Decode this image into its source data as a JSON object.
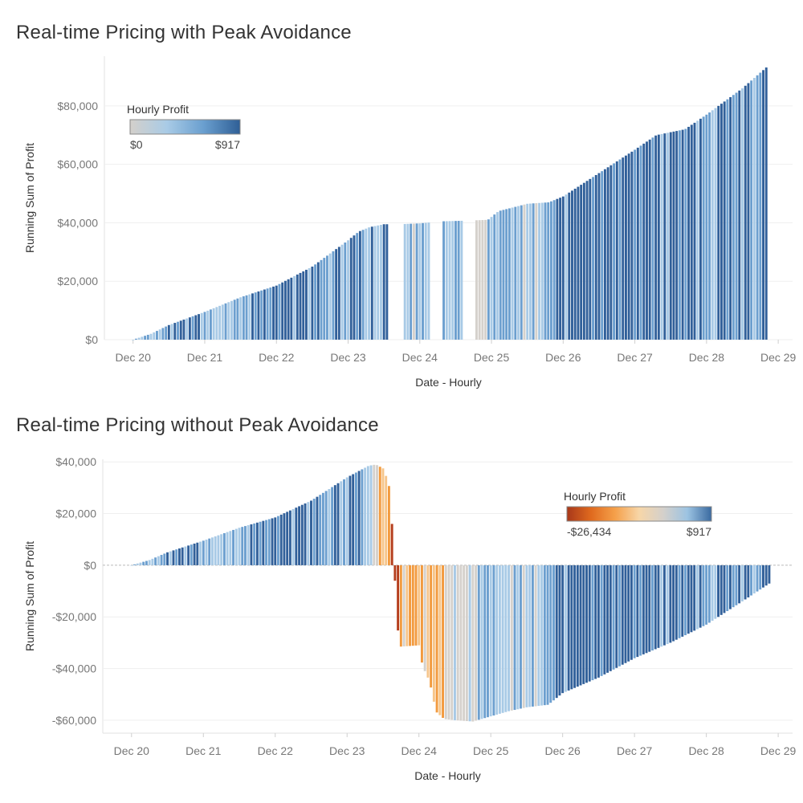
{
  "chart_data": [
    {
      "type": "bar",
      "title": "Real-time Pricing with Peak Avoidance",
      "xlabel": "Date - Hourly",
      "ylabel": "Running Sum of Profit",
      "x_ticks": [
        "Dec 20",
        "Dec 21",
        "Dec 22",
        "Dec 23",
        "Dec 24",
        "Dec 25",
        "Dec 26",
        "Dec 27",
        "Dec 28",
        "Dec 29"
      ],
      "y_ticks": [
        {
          "value": 0,
          "label": "$0"
        },
        {
          "value": 20000,
          "label": "$20,000"
        },
        {
          "value": 40000,
          "label": "$40,000"
        },
        {
          "value": 60000,
          "label": "$60,000"
        },
        {
          "value": 80000,
          "label": "$80,000"
        }
      ],
      "ylim": [
        0,
        97000
      ],
      "x_range_days": [
        -0.4,
        9.2
      ],
      "grid": true,
      "legend": {
        "title": "Hourly Profit",
        "min_label": "$0",
        "max_label": "$917",
        "position": "top-left",
        "colors": [
          "#d4d0cb",
          "#a9cbe6",
          "#6a9fcf",
          "#2f5f96"
        ]
      },
      "colors": {
        "gap": "#d5d1cc",
        "light": "#a8cae6",
        "mid": "#6c9fcf",
        "dark": "#31609a"
      },
      "series": [
        {
          "name": "Running Sum of Profit",
          "points": [
            {
              "day": 0.0,
              "value": 0
            },
            {
              "day": 0.25,
              "value": 2000
            },
            {
              "day": 0.5,
              "value": 5000
            },
            {
              "day": 1.0,
              "value": 9500
            },
            {
              "day": 1.5,
              "value": 14500
            },
            {
              "day": 2.0,
              "value": 18500
            },
            {
              "day": 2.5,
              "value": 25000
            },
            {
              "day": 3.0,
              "value": 34000
            },
            {
              "day": 3.15,
              "value": 37000
            },
            {
              "day": 3.3,
              "value": 38500
            },
            {
              "day": 3.5,
              "value": 39500
            },
            {
              "day": 3.7,
              "value": 39500
            },
            {
              "day": 4.0,
              "value": 39800
            },
            {
              "day": 4.3,
              "value": 40500
            },
            {
              "day": 4.6,
              "value": 40700
            },
            {
              "day": 4.95,
              "value": 41000
            },
            {
              "day": 5.1,
              "value": 44000
            },
            {
              "day": 5.5,
              "value": 46500
            },
            {
              "day": 5.8,
              "value": 47000
            },
            {
              "day": 6.0,
              "value": 49000
            },
            {
              "day": 6.5,
              "value": 57000
            },
            {
              "day": 7.0,
              "value": 65000
            },
            {
              "day": 7.3,
              "value": 70000
            },
            {
              "day": 7.7,
              "value": 72000
            },
            {
              "day": 8.0,
              "value": 77000
            },
            {
              "day": 8.5,
              "value": 86000
            },
            {
              "day": 8.85,
              "value": 93500
            }
          ],
          "hidden_hours": [
            [
              3.55,
              3.75
            ],
            [
              4.15,
              4.3
            ],
            [
              4.62,
              4.75
            ]
          ],
          "gray_hours": [
            [
              4.75,
              4.95
            ]
          ],
          "light_hours": [
            [
              1.0,
              1.45
            ],
            [
              3.75,
              4.15
            ],
            [
              4.3,
              4.62
            ],
            [
              5.3,
              5.75
            ]
          ],
          "dark_hours": [
            [
              0.15,
              0.95
            ],
            [
              1.6,
              3.55
            ],
            [
              5.8,
              8.9
            ]
          ]
        }
      ]
    },
    {
      "type": "bar",
      "title": "Real-time Pricing without Peak Avoidance",
      "xlabel": "Date - Hourly",
      "ylabel": "Running Sum of Profit",
      "x_ticks": [
        "Dec 20",
        "Dec 21",
        "Dec 22",
        "Dec 23",
        "Dec 24",
        "Dec 25",
        "Dec 26",
        "Dec 27",
        "Dec 28",
        "Dec 29"
      ],
      "y_ticks": [
        {
          "value": 40000,
          "label": "$40,000"
        },
        {
          "value": 20000,
          "label": "$20,000"
        },
        {
          "value": 0,
          "label": "$0"
        },
        {
          "value": -20000,
          "label": "-$20,000"
        },
        {
          "value": -40000,
          "label": "-$40,000"
        },
        {
          "value": -60000,
          "label": "-$60,000"
        }
      ],
      "ylim": [
        -65000,
        41000
      ],
      "x_range_days": [
        -0.4,
        9.2
      ],
      "grid": true,
      "legend": {
        "title": "Hourly Profit",
        "min_label": "-$26,434",
        "max_label": "$917",
        "position": "top-right",
        "colors": [
          "#a8381a",
          "#e06a1e",
          "#f5a04a",
          "#f7d6a8",
          "#d4d0cb",
          "#9cc3e2",
          "#3a6aa0"
        ]
      },
      "colors": {
        "gap": "#d5d1cc",
        "light": "#a8cae6",
        "mid": "#6c9fcf",
        "dark": "#31609a",
        "orange": "#f29a3e",
        "light_orange": "#f6c58a",
        "red": "#b53d1c"
      },
      "series": [
        {
          "name": "Running Sum of Profit",
          "points": [
            {
              "day": 0.0,
              "value": 0
            },
            {
              "day": 0.25,
              "value": 2000
            },
            {
              "day": 0.5,
              "value": 5000
            },
            {
              "day": 1.0,
              "value": 9500
            },
            {
              "day": 1.5,
              "value": 14500
            },
            {
              "day": 2.0,
              "value": 18500
            },
            {
              "day": 2.5,
              "value": 25000
            },
            {
              "day": 3.0,
              "value": 34000
            },
            {
              "day": 3.3,
              "value": 38500
            },
            {
              "day": 3.4,
              "value": 39000
            },
            {
              "day": 3.5,
              "value": 37500
            },
            {
              "day": 3.55,
              "value": 34000
            },
            {
              "day": 3.6,
              "value": 29000
            },
            {
              "day": 3.65,
              "value": 3000
            },
            {
              "day": 3.7,
              "value": -24000
            },
            {
              "day": 3.75,
              "value": -31500
            },
            {
              "day": 4.0,
              "value": -31000
            },
            {
              "day": 4.05,
              "value": -39000
            },
            {
              "day": 4.15,
              "value": -45000
            },
            {
              "day": 4.2,
              "value": -52000
            },
            {
              "day": 4.25,
              "value": -57000
            },
            {
              "day": 4.35,
              "value": -59500
            },
            {
              "day": 4.5,
              "value": -60000
            },
            {
              "day": 4.75,
              "value": -60500
            },
            {
              "day": 5.0,
              "value": -58500
            },
            {
              "day": 5.25,
              "value": -56500
            },
            {
              "day": 5.5,
              "value": -55000
            },
            {
              "day": 5.8,
              "value": -54000
            },
            {
              "day": 6.0,
              "value": -49500
            },
            {
              "day": 6.5,
              "value": -43500
            },
            {
              "day": 7.0,
              "value": -36000
            },
            {
              "day": 7.5,
              "value": -30000
            },
            {
              "day": 8.0,
              "value": -23000
            },
            {
              "day": 8.5,
              "value": -14000
            },
            {
              "day": 8.88,
              "value": -7000
            }
          ],
          "light_hours": [
            [
              1.0,
              1.5
            ],
            [
              3.3,
              3.45
            ],
            [
              4.35,
              4.75
            ],
            [
              5.1,
              5.75
            ]
          ],
          "dark_hours": [
            [
              0.15,
              0.95
            ],
            [
              1.6,
              3.25
            ],
            [
              5.8,
              8.9
            ]
          ]
        }
      ]
    }
  ]
}
